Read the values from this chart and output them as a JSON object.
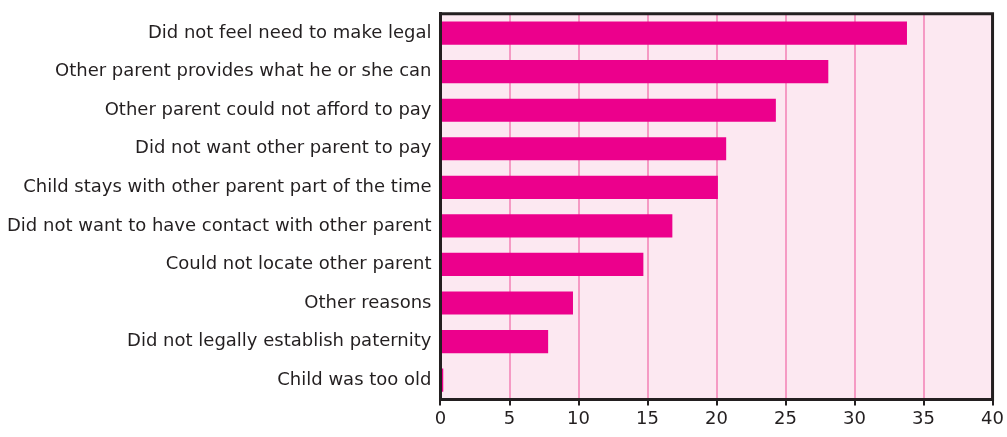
{
  "chart_data": {
    "type": "bar",
    "orientation": "horizontal",
    "categories": [
      "Did not feel need to make legal",
      "Other parent provides what he or she can",
      "Other parent could not afford to pay",
      "Did not want other parent to pay",
      "Child stays with other parent part of the time",
      "Did not want to have contact with other parent",
      "Could not locate other parent",
      "Other reasons",
      "Did not legally establish paternity",
      "Child was too old"
    ],
    "values": [
      33.8,
      28.1,
      24.3,
      20.7,
      20.1,
      16.8,
      14.7,
      9.6,
      7.8,
      0.2
    ],
    "color": "#ec008c",
    "xlim": [
      0,
      40
    ],
    "xticks": [
      0,
      5,
      10,
      15,
      20,
      25,
      30,
      35,
      40
    ],
    "grid": "x",
    "legend": false
  }
}
